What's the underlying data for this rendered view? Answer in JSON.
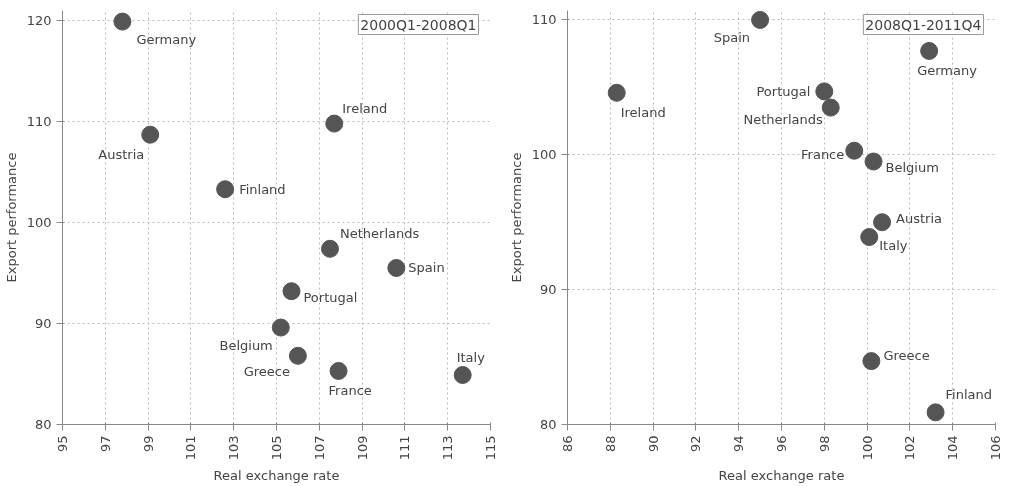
{
  "chart_data": [
    {
      "type": "scatter",
      "xlabel": "Real exchange rate",
      "ylabel": "Export performance",
      "xlim": [
        95,
        115
      ],
      "xticks": [
        95,
        97,
        99,
        101,
        103,
        105,
        107,
        109,
        111,
        113,
        115
      ],
      "ylim": [
        80,
        121
      ],
      "yticks": [
        80,
        90,
        100,
        110,
        120
      ],
      "grid": true,
      "marker": "circle",
      "series": [
        {
          "color": "#555555",
          "x": [
            97.8,
            99.1,
            102.6,
            107.7,
            107.5,
            110.6,
            105.7,
            105.2,
            106.0,
            107.9,
            113.7
          ],
          "values": [
            119.9,
            108.7,
            103.3,
            109.8,
            97.4,
            95.5,
            93.2,
            89.6,
            86.8,
            85.3,
            84.9
          ]
        }
      ],
      "annotations": [
        "2000Q1-2008Q1",
        {
          "text": "Germany",
          "x": 97.8,
          "y": 119.9
        },
        {
          "text": "Austria",
          "x": 99.1,
          "y": 108.7
        },
        {
          "text": "Finland",
          "x": 102.6,
          "y": 103.3
        },
        {
          "text": "Ireland",
          "x": 107.7,
          "y": 109.8
        },
        {
          "text": "Netherlands",
          "x": 107.5,
          "y": 97.4
        },
        {
          "text": "Spain",
          "x": 110.6,
          "y": 95.5
        },
        {
          "text": "Portugal",
          "x": 105.7,
          "y": 93.2
        },
        {
          "text": "Belgium",
          "x": 105.2,
          "y": 89.6
        },
        {
          "text": "Greece",
          "x": 106.0,
          "y": 86.8
        },
        {
          "text": "France",
          "x": 107.9,
          "y": 85.3
        },
        {
          "text": "Italy",
          "x": 113.7,
          "y": 84.9
        }
      ]
    },
    {
      "type": "scatter",
      "xlabel": "Real exchange rate",
      "ylabel": "Export performance",
      "xlim": [
        86,
        106
      ],
      "xticks": [
        86,
        88,
        90,
        92,
        94,
        96,
        98,
        100,
        102,
        104,
        106
      ],
      "ylim": [
        80,
        110.7
      ],
      "yticks": [
        80,
        90,
        100,
        110
      ],
      "grid": true,
      "marker": "circle",
      "series": [
        {
          "color": "#555555",
          "x": [
            95.0,
            102.9,
            88.3,
            98.0,
            98.3,
            99.4,
            100.3,
            100.7,
            100.1,
            100.2,
            103.2
          ],
          "values": [
            110.0,
            107.7,
            104.6,
            104.7,
            103.5,
            100.3,
            99.5,
            95.0,
            93.9,
            84.7,
            80.9
          ]
        }
      ],
      "annotations": [
        "2008Q1-2011Q4",
        {
          "text": "Spain",
          "x": 95.0,
          "y": 110.0
        },
        {
          "text": "Germany",
          "x": 102.9,
          "y": 107.7
        },
        {
          "text": "Ireland",
          "x": 88.3,
          "y": 104.6
        },
        {
          "text": "Portugal",
          "x": 98.0,
          "y": 104.7
        },
        {
          "text": "Netherlands",
          "x": 98.3,
          "y": 103.5
        },
        {
          "text": "France",
          "x": 99.4,
          "y": 100.3
        },
        {
          "text": "Belgium",
          "x": 100.3,
          "y": 99.5
        },
        {
          "text": "Austria",
          "x": 100.7,
          "y": 95.0
        },
        {
          "text": "Italy",
          "x": 100.1,
          "y": 93.9
        },
        {
          "text": "Greece",
          "x": 100.2,
          "y": 84.7
        },
        {
          "text": "Finland",
          "x": 103.2,
          "y": 80.9
        }
      ]
    }
  ]
}
